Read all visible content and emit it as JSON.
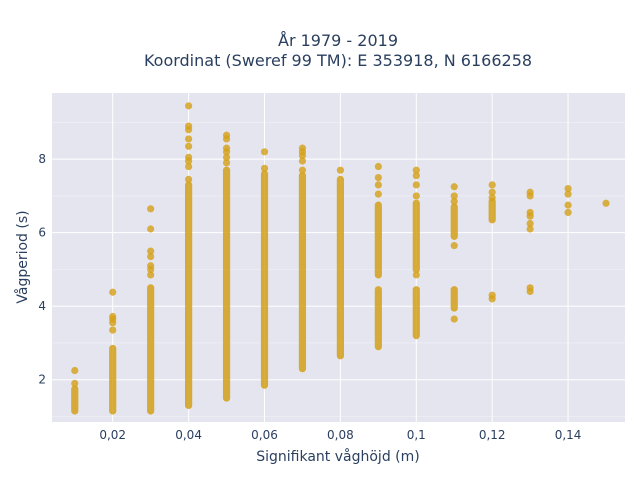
{
  "chart_data": {
    "type": "scatter",
    "title_line1": "År 1979 - 2019",
    "title_line2": "Koordinat (Sweref 99 TM): E 353918, N 6166258",
    "xlabel": "Signifikant våghöjd (m)",
    "ylabel": "Vågperiod (s)",
    "xlim": [
      0.004,
      0.155
    ],
    "ylim": [
      0.85,
      9.8
    ],
    "grid": true,
    "x_ticks": [
      0.02,
      0.04,
      0.06,
      0.08,
      0.1,
      0.12,
      0.14
    ],
    "x_tick_labels": [
      "0,02",
      "0,04",
      "0,06",
      "0,08",
      "0,1",
      "0,12",
      "0,14"
    ],
    "y_ticks": [
      2,
      4,
      6,
      8
    ],
    "y_tick_labels": [
      "2",
      "4",
      "6",
      "8"
    ],
    "colors": {
      "marker": "#d4a017",
      "plot_bg": "#e5e5f0",
      "grid": "#ffffff",
      "text": "#2a3f5f"
    },
    "columns": [
      {
        "x": 0.01,
        "ranges": [
          [
            1.15,
            1.75
          ]
        ],
        "points": [
          1.9,
          2.25
        ]
      },
      {
        "x": 0.02,
        "ranges": [
          [
            1.15,
            2.85
          ]
        ],
        "points": [
          3.35,
          3.55,
          3.65,
          3.72,
          4.38
        ]
      },
      {
        "x": 0.03,
        "ranges": [
          [
            1.15,
            4.5
          ]
        ],
        "points": [
          4.85,
          5.0,
          5.1,
          5.35,
          5.5,
          6.1,
          6.65
        ]
      },
      {
        "x": 0.04,
        "ranges": [
          [
            1.3,
            7.3
          ]
        ],
        "points": [
          7.45,
          7.8,
          7.95,
          8.05,
          8.35,
          8.55,
          8.8,
          8.9,
          9.45
        ]
      },
      {
        "x": 0.05,
        "ranges": [
          [
            1.5,
            7.7
          ]
        ],
        "points": [
          7.9,
          8.05,
          8.2,
          8.3,
          8.55,
          8.65
        ]
      },
      {
        "x": 0.06,
        "ranges": [
          [
            1.85,
            7.6
          ]
        ],
        "points": [
          7.75,
          8.2
        ]
      },
      {
        "x": 0.07,
        "ranges": [
          [
            2.3,
            7.55
          ]
        ],
        "points": [
          7.7,
          7.95,
          8.1,
          8.2,
          8.3
        ]
      },
      {
        "x": 0.08,
        "ranges": [
          [
            2.65,
            7.45
          ]
        ],
        "points": [
          7.7
        ]
      },
      {
        "x": 0.09,
        "ranges": [
          [
            2.9,
            4.45
          ],
          [
            4.85,
            6.75
          ]
        ],
        "points": [
          7.05,
          7.3,
          7.5,
          7.8
        ]
      },
      {
        "x": 0.1,
        "ranges": [
          [
            3.2,
            4.45
          ],
          [
            5.0,
            6.8
          ]
        ],
        "points": [
          4.85,
          7.0,
          7.3,
          7.55,
          7.7
        ]
      },
      {
        "x": 0.11,
        "ranges": [
          [
            3.95,
            4.45
          ],
          [
            5.9,
            6.7
          ]
        ],
        "points": [
          3.65,
          5.65,
          6.85,
          7.0,
          7.25
        ]
      },
      {
        "x": 0.12,
        "ranges": [
          [
            6.35,
            6.85
          ]
        ],
        "points": [
          4.2,
          4.3,
          6.95,
          7.1,
          7.3
        ]
      },
      {
        "x": 0.13,
        "ranges": [],
        "points": [
          4.4,
          4.5,
          6.1,
          6.25,
          6.45,
          6.55,
          7.0,
          7.1
        ]
      },
      {
        "x": 0.14,
        "ranges": [],
        "points": [
          6.55,
          6.75,
          7.05,
          7.2
        ]
      },
      {
        "x": 0.15,
        "ranges": [],
        "points": [
          6.8
        ]
      }
    ]
  }
}
